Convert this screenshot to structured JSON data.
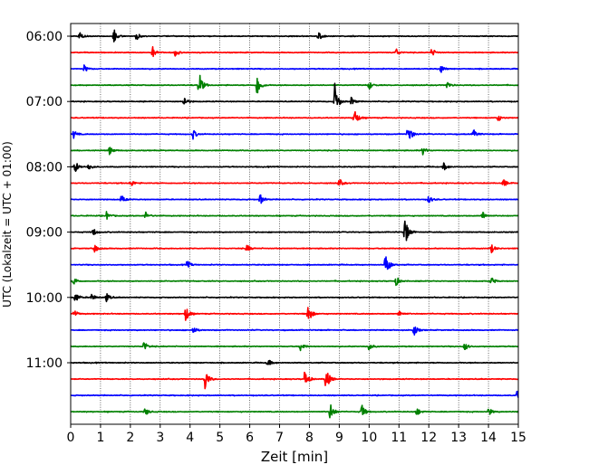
{
  "chart_data": {
    "type": "line",
    "title": "",
    "xlabel": "Zeit  [min]",
    "ylabel": "UTC (Lokalzeit = UTC + 01:00)",
    "xlim": [
      0,
      15
    ],
    "xticks": [
      "0",
      "1",
      "2",
      "3",
      "4",
      "5",
      "6",
      "7",
      "8",
      "9",
      "10",
      "11",
      "12",
      "13",
      "14",
      "15"
    ],
    "yticks": [
      {
        "label": "06:00",
        "trace_index": 0
      },
      {
        "label": "07:00",
        "trace_index": 4
      },
      {
        "label": "08:00",
        "trace_index": 8
      },
      {
        "label": "09:00",
        "trace_index": 12
      },
      {
        "label": "10:00",
        "trace_index": 16
      },
      {
        "label": "11:00",
        "trace_index": 20
      }
    ],
    "grid": "vertical dotted at each minute",
    "color_cycle": [
      "#000000",
      "#ff0000",
      "#0000ff",
      "#008000"
    ],
    "trace_interval_min": 15,
    "traces": [
      {
        "start": "06:00",
        "color": "#000000",
        "events": [
          {
            "t": 0.3,
            "amp": 0.3
          },
          {
            "t": 1.45,
            "amp": 0.5
          },
          {
            "t": 2.2,
            "amp": 0.3
          },
          {
            "t": 8.3,
            "amp": 0.3
          }
        ]
      },
      {
        "start": "06:15",
        "color": "#ff0000",
        "events": [
          {
            "t": 2.75,
            "amp": 0.4
          },
          {
            "t": 3.5,
            "amp": 0.3
          },
          {
            "t": 10.9,
            "amp": 0.3
          },
          {
            "t": 12.1,
            "amp": 0.3
          }
        ]
      },
      {
        "start": "06:30",
        "color": "#0000ff",
        "events": [
          {
            "t": 0.45,
            "amp": 0.3
          },
          {
            "t": 12.4,
            "amp": 0.3
          }
        ]
      },
      {
        "start": "06:45",
        "color": "#008000",
        "events": [
          {
            "t": 4.3,
            "amp": 1.0
          },
          {
            "t": 6.25,
            "amp": 0.85
          },
          {
            "t": 10.0,
            "amp": 0.3
          },
          {
            "t": 12.6,
            "amp": 0.3
          }
        ]
      },
      {
        "start": "07:00",
        "color": "#000000",
        "events": [
          {
            "t": 3.8,
            "amp": 0.4
          },
          {
            "t": 8.85,
            "amp": 1.3
          },
          {
            "t": 9.4,
            "amp": 0.3
          }
        ]
      },
      {
        "start": "07:15",
        "color": "#ff0000",
        "events": [
          {
            "t": 9.5,
            "amp": 0.75
          },
          {
            "t": 14.3,
            "amp": 0.3
          }
        ]
      },
      {
        "start": "07:30",
        "color": "#0000ff",
        "events": [
          {
            "t": 0.1,
            "amp": 0.3
          },
          {
            "t": 4.1,
            "amp": 0.35
          },
          {
            "t": 11.3,
            "amp": 0.9
          },
          {
            "t": 13.5,
            "amp": 0.3
          }
        ]
      },
      {
        "start": "07:45",
        "color": "#008000",
        "events": [
          {
            "t": 1.3,
            "amp": 0.3
          },
          {
            "t": 11.8,
            "amp": 0.3
          }
        ]
      },
      {
        "start": "08:00",
        "color": "#000000",
        "events": [
          {
            "t": 0.15,
            "amp": 0.45
          },
          {
            "t": 0.6,
            "amp": 0.3
          },
          {
            "t": 12.5,
            "amp": 0.3
          }
        ]
      },
      {
        "start": "08:15",
        "color": "#ff0000",
        "events": [
          {
            "t": 2.0,
            "amp": 0.3
          },
          {
            "t": 9.0,
            "amp": 0.3
          },
          {
            "t": 14.5,
            "amp": 0.3
          }
        ]
      },
      {
        "start": "08:30",
        "color": "#0000ff",
        "events": [
          {
            "t": 1.7,
            "amp": 0.3
          },
          {
            "t": 6.35,
            "amp": 0.4
          },
          {
            "t": 12.0,
            "amp": 0.3
          }
        ]
      },
      {
        "start": "08:45",
        "color": "#008000",
        "events": [
          {
            "t": 1.2,
            "amp": 0.3
          },
          {
            "t": 2.5,
            "amp": 0.3
          },
          {
            "t": 13.8,
            "amp": 0.3
          }
        ]
      },
      {
        "start": "09:00",
        "color": "#000000",
        "events": [
          {
            "t": 0.75,
            "amp": 0.3
          },
          {
            "t": 11.2,
            "amp": 1.1
          }
        ]
      },
      {
        "start": "09:15",
        "color": "#ff0000",
        "events": [
          {
            "t": 0.8,
            "amp": 0.3
          },
          {
            "t": 5.9,
            "amp": 0.3
          },
          {
            "t": 14.1,
            "amp": 0.3
          }
        ]
      },
      {
        "start": "09:30",
        "color": "#0000ff",
        "events": [
          {
            "t": 3.9,
            "amp": 0.3
          },
          {
            "t": 10.55,
            "amp": 1.0
          }
        ]
      },
      {
        "start": "09:45",
        "color": "#008000",
        "events": [
          {
            "t": 0.1,
            "amp": 0.3
          },
          {
            "t": 10.9,
            "amp": 0.35
          },
          {
            "t": 14.1,
            "amp": 0.3
          }
        ]
      },
      {
        "start": "10:00",
        "color": "#000000",
        "events": [
          {
            "t": 0.15,
            "amp": 0.45
          },
          {
            "t": 0.7,
            "amp": 0.3
          },
          {
            "t": 1.2,
            "amp": 0.3
          }
        ]
      },
      {
        "start": "10:15",
        "color": "#ff0000",
        "events": [
          {
            "t": 0.1,
            "amp": 0.3
          },
          {
            "t": 3.85,
            "amp": 0.6
          },
          {
            "t": 7.95,
            "amp": 0.8
          },
          {
            "t": 11.0,
            "amp": 0.3
          }
        ]
      },
      {
        "start": "10:30",
        "color": "#0000ff",
        "events": [
          {
            "t": 4.1,
            "amp": 0.3
          },
          {
            "t": 11.5,
            "amp": 0.45
          }
        ]
      },
      {
        "start": "10:45",
        "color": "#008000",
        "events": [
          {
            "t": 2.45,
            "amp": 0.4
          },
          {
            "t": 7.7,
            "amp": 0.35
          },
          {
            "t": 10.0,
            "amp": 0.3
          },
          {
            "t": 13.2,
            "amp": 0.3
          }
        ]
      },
      {
        "start": "11:00",
        "color": "#000000",
        "events": [
          {
            "t": 6.6,
            "amp": 0.3
          }
        ]
      },
      {
        "start": "11:15",
        "color": "#ff0000",
        "events": [
          {
            "t": 4.5,
            "amp": 0.85
          },
          {
            "t": 7.85,
            "amp": 0.75
          },
          {
            "t": 8.55,
            "amp": 0.95
          }
        ]
      },
      {
        "start": "11:30",
        "color": "#0000ff",
        "events": [
          {
            "t": 14.95,
            "amp": 0.35
          }
        ]
      },
      {
        "start": "11:45",
        "color": "#008000",
        "events": [
          {
            "t": 2.5,
            "amp": 0.3
          },
          {
            "t": 8.7,
            "amp": 0.7
          },
          {
            "t": 9.75,
            "amp": 0.55
          },
          {
            "t": 11.6,
            "amp": 0.3
          },
          {
            "t": 14.0,
            "amp": 0.3
          }
        ]
      }
    ]
  }
}
